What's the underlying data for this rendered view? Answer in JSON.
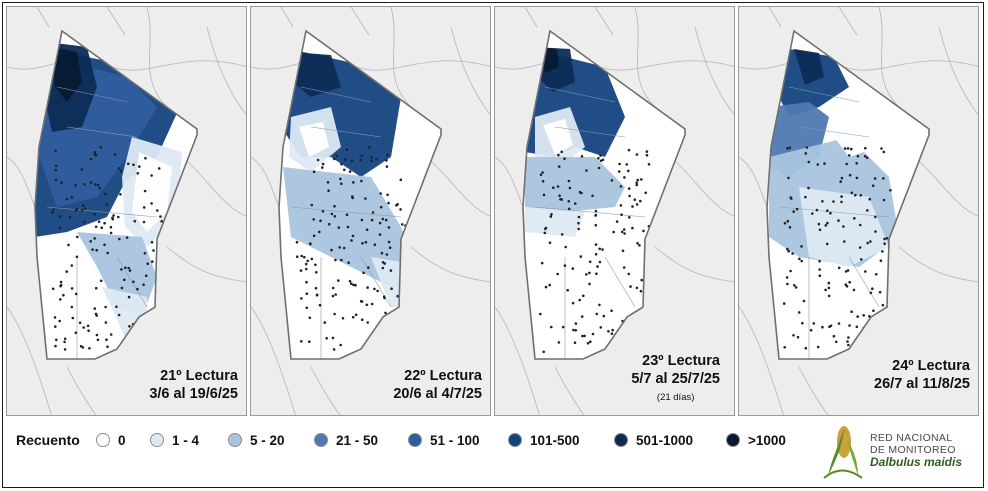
{
  "panels": [
    {
      "title": "21º Lectura",
      "date": "3/6 al 19/6/25",
      "note": ""
    },
    {
      "title": "22º Lectura",
      "date": "20/6 al 4/7/25",
      "note": ""
    },
    {
      "title": "23º Lectura",
      "date": "5/7 al 25/7/25",
      "note": "(21 días)"
    },
    {
      "title": "24º Lectura",
      "date": "26/7 al 11/8/25",
      "note": ""
    }
  ],
  "legend": {
    "title": "Recuento",
    "items": [
      {
        "label": "0",
        "color": "#ffffff"
      },
      {
        "label": "1 - 4",
        "color": "#dde9f3"
      },
      {
        "label": "5 - 20",
        "color": "#a9c4de"
      },
      {
        "label": "21 - 50",
        "color": "#4f79b2"
      },
      {
        "label": "51 - 100",
        "color": "#2f5d9d"
      },
      {
        "label": "101-500",
        "color": "#14437e"
      },
      {
        "label": "501-1000",
        "color": "#0d2c55"
      },
      {
        "label": ">1000",
        "color": "#081a33"
      }
    ]
  },
  "logo": {
    "line1": "RED NACIONAL",
    "line2": "DE MONITOREO",
    "line3": "Dalbulus maidis",
    "green": "#5a8a2a",
    "gold": "#c8a23a"
  }
}
